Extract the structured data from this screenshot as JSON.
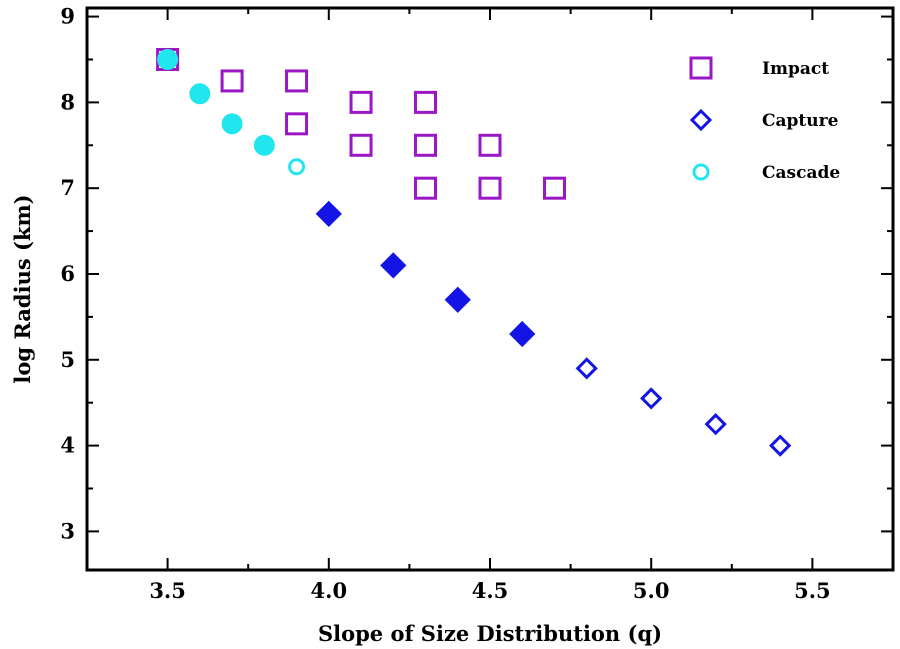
{
  "chart_data": {
    "type": "scatter",
    "title": "",
    "xlabel": "Slope of Size Distribution (q)",
    "ylabel": "log Radius (km)",
    "xlim": [
      3.25,
      5.75
    ],
    "ylim": [
      2.55,
      9.1
    ],
    "xticks": [
      3.5,
      4.0,
      4.5,
      5.0,
      5.5
    ],
    "xtick_labels": [
      "3.5",
      "4.0",
      "4.5",
      "5.0",
      "5.5"
    ],
    "yticks": [
      3,
      4,
      5,
      6,
      7,
      8,
      9
    ],
    "ytick_labels": [
      "3",
      "4",
      "5",
      "6",
      "7",
      "8",
      "9"
    ],
    "legend_position": "top-right",
    "grid": false,
    "series": [
      {
        "name": "Impact",
        "marker": "square",
        "color": "#9b16c4",
        "points": [
          {
            "x": 3.5,
            "y": 8.5,
            "filled": false
          },
          {
            "x": 3.7,
            "y": 8.25,
            "filled": false
          },
          {
            "x": 3.9,
            "y": 8.25,
            "filled": false
          },
          {
            "x": 3.9,
            "y": 7.75,
            "filled": false
          },
          {
            "x": 4.1,
            "y": 8.0,
            "filled": false
          },
          {
            "x": 4.1,
            "y": 7.5,
            "filled": false
          },
          {
            "x": 4.3,
            "y": 8.0,
            "filled": false
          },
          {
            "x": 4.3,
            "y": 7.5,
            "filled": false
          },
          {
            "x": 4.3,
            "y": 7.0,
            "filled": false
          },
          {
            "x": 4.5,
            "y": 7.5,
            "filled": false
          },
          {
            "x": 4.5,
            "y": 7.0,
            "filled": false
          },
          {
            "x": 4.7,
            "y": 7.0,
            "filled": false
          }
        ]
      },
      {
        "name": "Capture",
        "marker": "diamond",
        "color": "#1414e6",
        "points": [
          {
            "x": 4.0,
            "y": 6.7,
            "filled": true
          },
          {
            "x": 4.2,
            "y": 6.1,
            "filled": true
          },
          {
            "x": 4.4,
            "y": 5.7,
            "filled": true
          },
          {
            "x": 4.6,
            "y": 5.3,
            "filled": true
          },
          {
            "x": 4.8,
            "y": 4.9,
            "filled": false
          },
          {
            "x": 5.0,
            "y": 4.55,
            "filled": false
          },
          {
            "x": 5.2,
            "y": 4.25,
            "filled": false
          },
          {
            "x": 5.4,
            "y": 4.0,
            "filled": false
          }
        ]
      },
      {
        "name": "Cascade",
        "marker": "circle",
        "color": "#22e6ee",
        "points": [
          {
            "x": 3.5,
            "y": 8.5,
            "filled": true
          },
          {
            "x": 3.6,
            "y": 8.1,
            "filled": true
          },
          {
            "x": 3.7,
            "y": 7.75,
            "filled": true
          },
          {
            "x": 3.8,
            "y": 7.5,
            "filled": true
          },
          {
            "x": 3.9,
            "y": 7.25,
            "filled": false
          }
        ]
      }
    ]
  }
}
